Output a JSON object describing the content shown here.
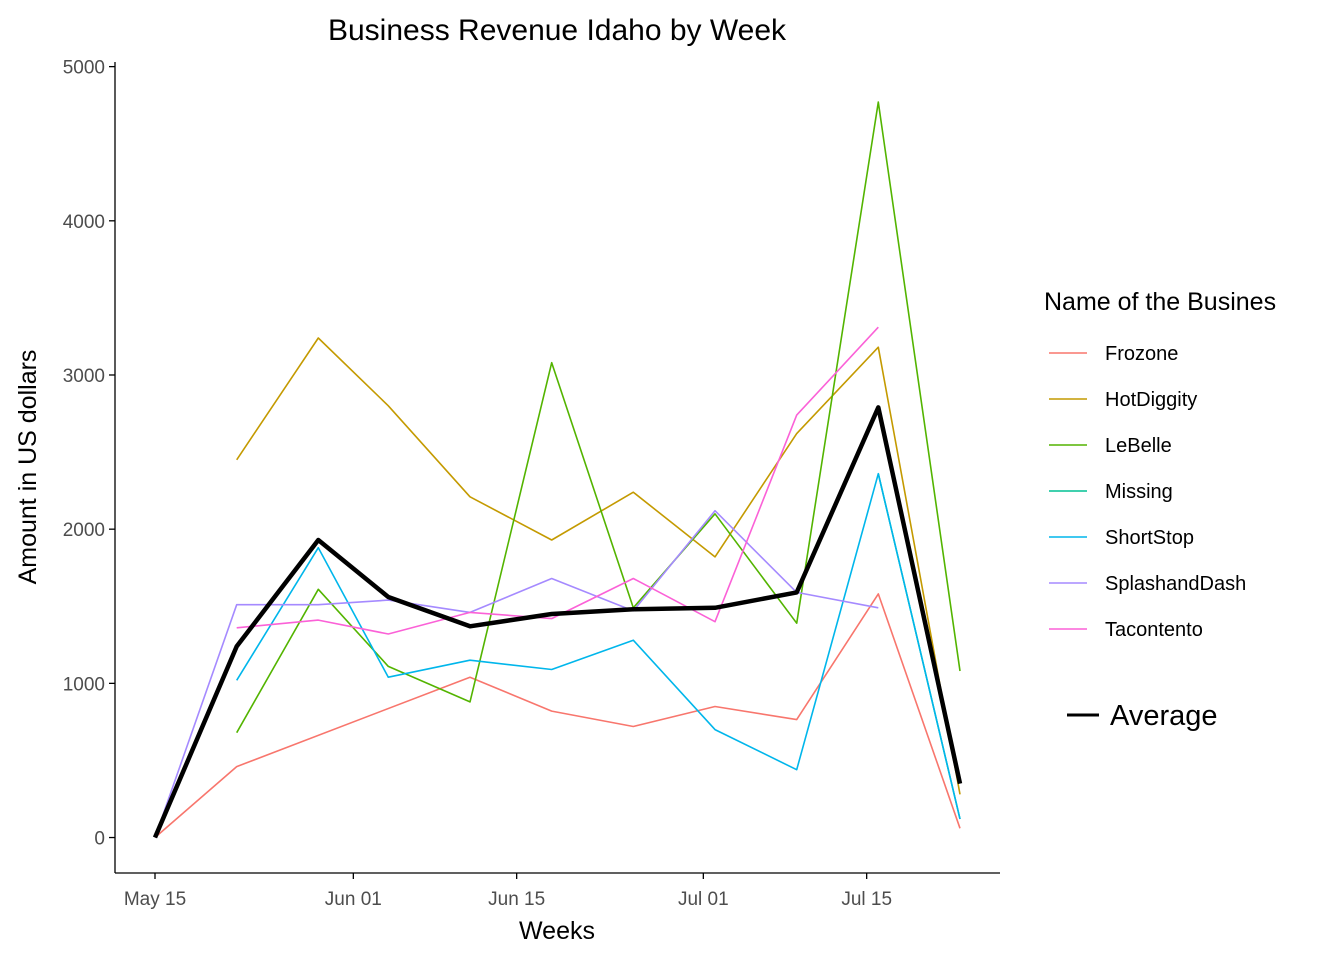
{
  "chart_data": {
    "type": "line",
    "title": "Business Revenue Idaho by Week",
    "xlabel": "Weeks",
    "ylabel": "Amount in US dollars",
    "x_type": "date",
    "xlim": [
      "2016-05-15",
      "2016-07-23"
    ],
    "ylim": [
      -230,
      5030
    ],
    "x_ticks": [
      {
        "date": "2016-05-15",
        "label": "May 15"
      },
      {
        "date": "2016-06-01",
        "label": "Jun 01"
      },
      {
        "date": "2016-06-15",
        "label": "Jun 15"
      },
      {
        "date": "2016-07-01",
        "label": "Jul 01"
      },
      {
        "date": "2016-07-15",
        "label": "Jul 15"
      }
    ],
    "y_ticks": [
      0,
      1000,
      2000,
      3000,
      4000,
      5000
    ],
    "grid": false,
    "legend": {
      "title": "Name of the Busines",
      "position": "right"
    },
    "series": [
      {
        "name": "Frozone",
        "color": "#F8766D",
        "line_width": "thin",
        "points": [
          [
            "2016-05-15",
            0
          ],
          [
            "2016-05-22",
            460
          ],
          [
            "2016-06-11",
            1040
          ],
          [
            "2016-06-18",
            820
          ],
          [
            "2016-06-25",
            720
          ],
          [
            "2016-07-02",
            850
          ],
          [
            "2016-07-09",
            765
          ],
          [
            "2016-07-16",
            1580
          ],
          [
            "2016-07-23",
            60
          ]
        ]
      },
      {
        "name": "HotDiggity",
        "color": "#C49A00",
        "line_width": "thin",
        "points": [
          [
            "2016-05-22",
            2450
          ],
          [
            "2016-05-29",
            3240
          ],
          [
            "2016-06-04",
            2800
          ],
          [
            "2016-06-11",
            2210
          ],
          [
            "2016-06-18",
            1930
          ],
          [
            "2016-06-25",
            2240
          ],
          [
            "2016-07-02",
            1820
          ],
          [
            "2016-07-09",
            2620
          ],
          [
            "2016-07-16",
            3180
          ],
          [
            "2016-07-23",
            280
          ]
        ]
      },
      {
        "name": "LeBelle",
        "color": "#53B400",
        "line_width": "thin",
        "points": [
          [
            "2016-05-22",
            680
          ],
          [
            "2016-05-29",
            1610
          ],
          [
            "2016-06-04",
            1110
          ],
          [
            "2016-06-11",
            880
          ],
          [
            "2016-06-18",
            3080
          ],
          [
            "2016-06-25",
            1490
          ],
          [
            "2016-07-02",
            2100
          ],
          [
            "2016-07-09",
            1390
          ],
          [
            "2016-07-16",
            4770
          ],
          [
            "2016-07-23",
            1080
          ]
        ]
      },
      {
        "name": "Missing",
        "color": "#00C094",
        "line_width": "thin",
        "points": [
          [
            "2016-07-16",
            2360
          ],
          [
            "2016-07-23",
            120
          ]
        ]
      },
      {
        "name": "ShortStop",
        "color": "#00B6EB",
        "line_width": "thin",
        "points": [
          [
            "2016-05-22",
            1020
          ],
          [
            "2016-05-29",
            1880
          ],
          [
            "2016-06-04",
            1040
          ],
          [
            "2016-06-11",
            1150
          ],
          [
            "2016-06-18",
            1090
          ],
          [
            "2016-06-25",
            1280
          ],
          [
            "2016-07-02",
            700
          ],
          [
            "2016-07-09",
            440
          ],
          [
            "2016-07-16",
            2360
          ],
          [
            "2016-07-23",
            120
          ]
        ]
      },
      {
        "name": "SplashandDash",
        "color": "#A58AFF",
        "line_width": "thin",
        "points": [
          [
            "2016-05-15",
            0
          ],
          [
            "2016-05-22",
            1510
          ],
          [
            "2016-05-29",
            1510
          ],
          [
            "2016-06-04",
            1540
          ],
          [
            "2016-06-11",
            1460
          ],
          [
            "2016-06-18",
            1680
          ],
          [
            "2016-06-25",
            1470
          ],
          [
            "2016-07-02",
            2120
          ],
          [
            "2016-07-09",
            1590
          ],
          [
            "2016-07-16",
            1490
          ]
        ]
      },
      {
        "name": "Tacontento",
        "color": "#FB61D7",
        "line_width": "thin",
        "points": [
          [
            "2016-05-22",
            1360
          ],
          [
            "2016-05-29",
            1410
          ],
          [
            "2016-06-04",
            1320
          ],
          [
            "2016-06-11",
            1460
          ],
          [
            "2016-06-18",
            1420
          ],
          [
            "2016-06-25",
            1680
          ],
          [
            "2016-07-02",
            1400
          ],
          [
            "2016-07-09",
            2740
          ],
          [
            "2016-07-16",
            3310
          ]
        ]
      },
      {
        "name": "Average",
        "color": "#000000",
        "line_width": "thick",
        "points": [
          [
            "2016-05-15",
            0
          ],
          [
            "2016-05-22",
            1240
          ],
          [
            "2016-05-29",
            1930
          ],
          [
            "2016-06-04",
            1560
          ],
          [
            "2016-06-11",
            1370
          ],
          [
            "2016-06-18",
            1450
          ],
          [
            "2016-06-25",
            1480
          ],
          [
            "2016-07-02",
            1490
          ],
          [
            "2016-07-09",
            1590
          ],
          [
            "2016-07-16",
            2790
          ],
          [
            "2016-07-23",
            350
          ]
        ]
      }
    ]
  }
}
